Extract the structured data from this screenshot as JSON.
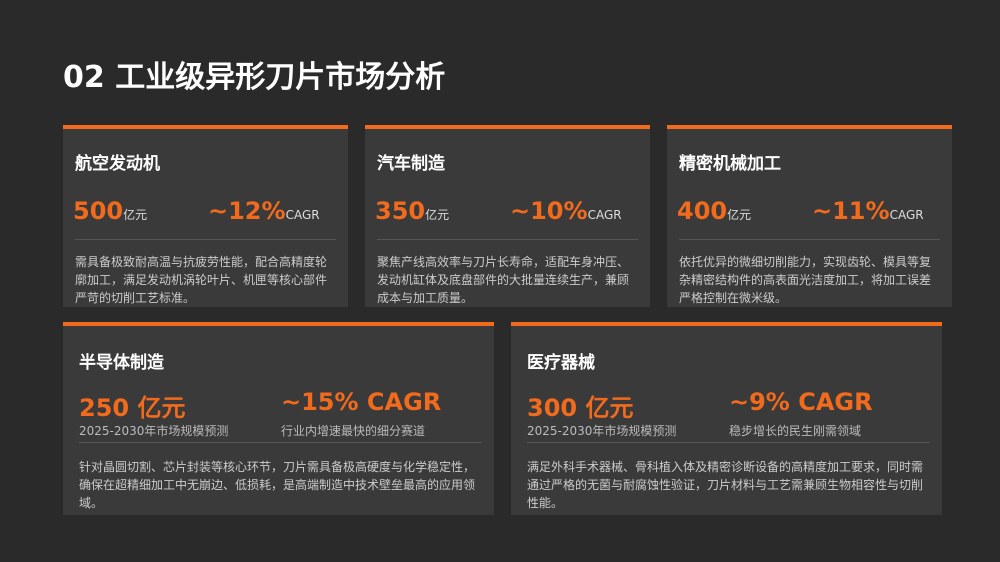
{
  "title": "02 工业级异形刀片市场分析",
  "top_cards": [
    {
      "title": "航空发动机",
      "market": "500",
      "market_unit": "亿元",
      "growth": "~12%",
      "growth_unit": "CAGR",
      "description": "需具备极致耐高温与抗疲劳性能，配合高精度轮廓加工，满足发动机涡轮叶片、机匣等核心部件严苛的切削工艺标准。"
    },
    {
      "title": "汽车制造",
      "market": "350",
      "market_unit": "亿元",
      "growth": "~10%",
      "growth_unit": "CAGR",
      "description": "聚焦产线高效率与刀片长寿命，适配车身冲压、发动机缸体及底盘部件的大批量连续生产，兼顾成本与加工质量。"
    },
    {
      "title": "精密机械加工",
      "market": "400",
      "market_unit": "亿元",
      "growth": "~11%",
      "growth_unit": "CAGR",
      "description": "依托优异的微细切削能力，实现齿轮、模具等复杂精密结构件的高表面光洁度加工，将加工误差严格控制在微米级。"
    }
  ],
  "bottom_cards": [
    {
      "title": "半导体制造",
      "market": "250 亿元",
      "market_note": "2025-2030年市场规模预测",
      "growth": "~15% CAGR",
      "growth_note": "行业内增速最快的细分赛道",
      "description": "针对晶圆切割、芯片封装等核心环节，刀片需具备极高硬度与化学稳定性，确保在超精细加工中无崩边、低损耗，是高端制造中技术壁垒最高的应用领域。"
    },
    {
      "title": "医疗器械",
      "market": "300 亿元",
      "market_note": "2025-2030年市场规模预测",
      "growth": "~9% CAGR",
      "growth_note": "稳步增长的民生刚需领域",
      "description": "满足外科手术器械、骨科植入体及精密诊断设备的高精度加工要求，同时需通过严格的无菌与耐腐蚀性验证，刀片材料与工艺需兼顾生物相容性与切削性能。"
    }
  ]
}
